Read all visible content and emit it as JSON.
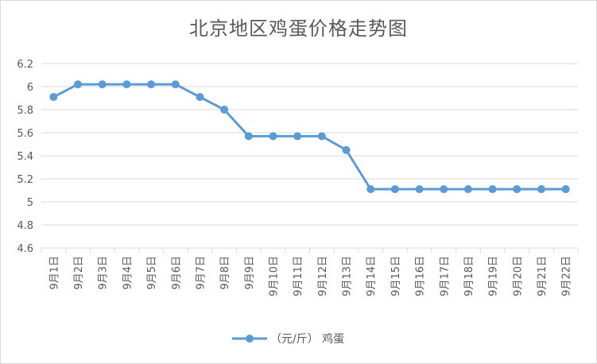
{
  "chart_data": {
    "type": "line",
    "title": "北京地区鸡蛋价格走势图",
    "categories": [
      "9月1日",
      "9月2日",
      "9月3日",
      "9月4日",
      "9月5日",
      "9月6日",
      "9月7日",
      "9月8日",
      "9月9日",
      "9月10日",
      "9月11日",
      "9月12日",
      "9月13日",
      "9月14日",
      "9月15日",
      "9月16日",
      "9月17日",
      "9月18日",
      "9月19日",
      "9月20日",
      "9月21日",
      "9月22日"
    ],
    "series": [
      {
        "name": "（元/斤） 鸡蛋",
        "color": "#5b9bd5",
        "values": [
          5.91,
          6.02,
          6.02,
          6.02,
          6.02,
          6.02,
          5.91,
          5.8,
          5.57,
          5.57,
          5.57,
          5.57,
          5.45,
          5.11,
          5.11,
          5.11,
          5.11,
          5.11,
          5.11,
          5.11,
          5.11,
          5.11
        ]
      }
    ],
    "ylim": [
      4.6,
      6.2
    ],
    "yticks": [
      "4.6",
      "4.8",
      "5",
      "5.2",
      "5.4",
      "5.6",
      "5.8",
      "6",
      "6.2"
    ],
    "xlabel": "",
    "ylabel": "",
    "grid": true,
    "legend_position": "bottom"
  }
}
